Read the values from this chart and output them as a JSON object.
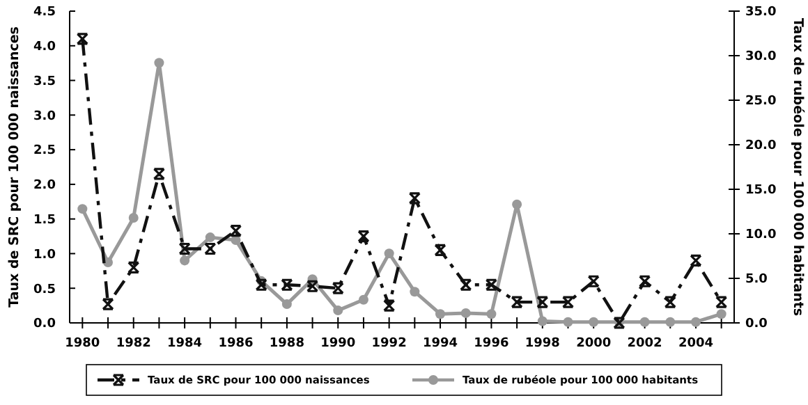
{
  "chart_data": {
    "type": "line",
    "ylabel": "Taux de SRC pour 100 000 naissances",
    "y2label": "Taux de rubéole pour 100 000 habitants",
    "x": [
      1980,
      1981,
      1982,
      1983,
      1984,
      1985,
      1986,
      1987,
      1988,
      1989,
      1990,
      1991,
      1992,
      1993,
      1994,
      1995,
      1996,
      1997,
      1998,
      1999,
      2000,
      2001,
      2002,
      2003,
      2004,
      2005
    ],
    "series": [
      {
        "name": "Taux de SRC pour 100 000 naissances",
        "color": "#111111",
        "marker": "cross",
        "line_style": "dashdot",
        "values": [
          4.1,
          0.27,
          0.8,
          2.15,
          1.07,
          1.07,
          1.33,
          0.55,
          0.55,
          0.53,
          0.5,
          1.25,
          0.25,
          1.8,
          1.05,
          0.55,
          0.55,
          0.3,
          0.3,
          0.3,
          0.6,
          0.0,
          0.6,
          0.3,
          0.9,
          0.3
        ]
      },
      {
        "name": "Taux de rubéole pour 100 000 habitants",
        "color": "#999999",
        "marker": "circle",
        "line_style": "solid",
        "axis": "y2",
        "values": [
          12.8,
          6.8,
          11.8,
          29.2,
          7.0,
          9.6,
          9.3,
          4.7,
          2.1,
          4.9,
          1.4,
          2.6,
          7.8,
          3.5,
          1.0,
          1.1,
          1.0,
          13.3,
          0.2,
          0.1,
          0.1,
          0.1,
          0.1,
          0.1,
          0.1,
          1.0
        ]
      }
    ],
    "xlim": [
      1979.5,
      2005.5
    ],
    "xticks": [
      1980,
      {
        "value": 1981,
        "label": null
      },
      1982,
      {
        "value": 1983,
        "label": null
      },
      1984,
      {
        "value": 1985,
        "label": null
      },
      1986,
      {
        "value": 1987,
        "label": null
      },
      1988,
      {
        "value": 1989,
        "label": null
      },
      1990,
      {
        "value": 1991,
        "label": null
      },
      1992,
      {
        "value": 1993,
        "label": null
      },
      1994,
      {
        "value": 1995,
        "label": null
      },
      1996,
      {
        "value": 1997,
        "label": null
      },
      1998,
      {
        "value": 1999,
        "label": null
      },
      2000,
      {
        "value": 2001,
        "label": null
      },
      2002,
      {
        "value": 2003,
        "label": null
      },
      2004,
      {
        "value": 2005,
        "label": null
      }
    ],
    "ylim": [
      0,
      4.5
    ],
    "yticks": [
      {
        "value": 0,
        "label": "0.0"
      },
      {
        "value": 0.5,
        "label": "0.5"
      },
      {
        "value": 1,
        "label": "1.0"
      },
      {
        "value": 1.5,
        "label": "1.5"
      },
      {
        "value": 2,
        "label": "2.0"
      },
      {
        "value": 2.5,
        "label": "2.5"
      },
      {
        "value": 3,
        "label": "3.0"
      },
      {
        "value": 3.5,
        "label": "3.5"
      },
      {
        "value": 4,
        "label": "4.0"
      },
      {
        "value": 4.5,
        "label": "4.5"
      }
    ],
    "y2lim": [
      0,
      35
    ],
    "y2ticks": [
      {
        "value": 0,
        "label": "0.0"
      },
      {
        "value": 5,
        "label": "5.0"
      },
      {
        "value": 10,
        "label": "10.0"
      },
      {
        "value": 15,
        "label": "15.0"
      },
      {
        "value": 20,
        "label": "20.0"
      },
      {
        "value": 25,
        "label": "25.0"
      },
      {
        "value": 30,
        "label": "30.0"
      },
      {
        "value": 35,
        "label": "35.0"
      }
    ],
    "grid": false,
    "legend": "bottom"
  }
}
